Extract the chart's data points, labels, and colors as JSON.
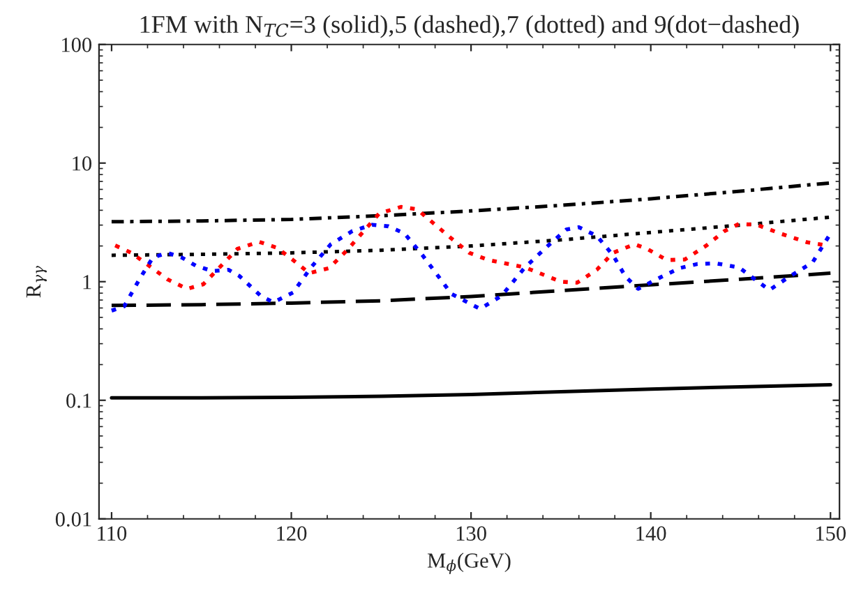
{
  "chart_data": {
    "type": "line",
    "title": "1FM with N$_{TC}$=3 (solid),5 (dashed),7 (dotted) and 9(dot−dashed)",
    "xlabel": "M$_{ϕ}$(GeV)",
    "ylabel": "R$_{γγ}$",
    "log": "y",
    "grid": false,
    "legend": false,
    "xlim": [
      109.3,
      150.5
    ],
    "xticks": [
      110,
      120,
      130,
      140,
      150
    ],
    "ylim": [
      0.01,
      100
    ],
    "yticks": [
      {
        "value": 0.01,
        "label": "0.01"
      },
      {
        "value": 0.1,
        "label": "0.1"
      },
      1,
      10,
      100
    ],
    "series": [
      {
        "color": "#000000",
        "line_style": "solid",
        "x": [
          110,
          115,
          120,
          125,
          130,
          135,
          140,
          145,
          150
        ],
        "values": [
          0.105,
          0.105,
          0.106,
          0.108,
          0.112,
          0.118,
          0.124,
          0.13,
          0.135
        ]
      },
      {
        "color": "#000000",
        "line_style": "dashed",
        "x": [
          110,
          115,
          120,
          125,
          130,
          135,
          140,
          145,
          150
        ],
        "values": [
          0.63,
          0.64,
          0.66,
          0.69,
          0.75,
          0.84,
          0.94,
          1.05,
          1.18
        ]
      },
      {
        "color": "#000000",
        "line_style": "dotted",
        "x": [
          110,
          115,
          120,
          125,
          130,
          135,
          140,
          145,
          150
        ],
        "values": [
          1.67,
          1.7,
          1.75,
          1.84,
          2.0,
          2.25,
          2.6,
          3.0,
          3.5
        ]
      },
      {
        "color": "#000000",
        "line_style": "dashdot",
        "x": [
          110,
          115,
          120,
          125,
          130,
          135,
          140,
          145,
          150
        ],
        "values": [
          3.2,
          3.25,
          3.35,
          3.6,
          3.95,
          4.4,
          5.0,
          5.8,
          6.8
        ]
      },
      {
        "color": "#ff0000",
        "line_style": "dotted",
        "x": [
          110.2,
          111.1,
          113.1,
          114.2,
          115.1,
          117.0,
          118.2,
          119.2,
          120.1,
          121.0,
          122.1,
          123.1,
          124.9,
          126.1,
          127.0,
          128.9,
          129.9,
          131.0,
          133.0,
          135.0,
          135.9,
          137.0,
          137.9,
          139.1,
          139.8,
          140.9,
          141.9,
          143.1,
          144.1,
          144.9,
          145.9,
          147.2,
          148.7,
          149.8
        ],
        "values": [
          2.02,
          1.75,
          1.05,
          0.87,
          0.95,
          1.89,
          2.17,
          1.93,
          1.52,
          1.18,
          1.3,
          1.84,
          3.77,
          4.27,
          4.07,
          2.32,
          1.75,
          1.52,
          1.32,
          1.0,
          0.98,
          1.26,
          1.75,
          2.07,
          1.89,
          1.52,
          1.54,
          2.02,
          2.67,
          3.07,
          3.02,
          2.55,
          2.15,
          2.02
        ]
      },
      {
        "color": "#0000ff",
        "line_style": "dotted",
        "x": [
          110.0,
          110.7,
          111.6,
          112.3,
          113.1,
          113.9,
          114.7,
          115.6,
          116.5,
          117.1,
          118.3,
          119.0,
          120.1,
          121.1,
          122.2,
          123.4,
          124.5,
          125.4,
          126.3,
          127.3,
          128.3,
          128.9,
          130.5,
          131.7,
          133.0,
          134.3,
          135.3,
          136.0,
          137.0,
          137.9,
          138.6,
          139.3,
          140.6,
          141.6,
          142.6,
          143.6,
          144.9,
          146.6,
          147.7,
          149.0,
          150.0
        ],
        "values": [
          0.57,
          0.62,
          1.08,
          1.6,
          1.75,
          1.6,
          1.36,
          1.23,
          1.26,
          1.12,
          0.76,
          0.67,
          0.81,
          1.32,
          2.07,
          2.67,
          3.02,
          2.93,
          2.55,
          1.67,
          1.05,
          0.79,
          0.59,
          0.76,
          1.32,
          2.02,
          2.75,
          2.88,
          2.43,
          1.67,
          1.1,
          0.87,
          1.1,
          1.3,
          1.41,
          1.43,
          1.32,
          0.85,
          1.1,
          1.45,
          2.55
        ]
      }
    ]
  }
}
